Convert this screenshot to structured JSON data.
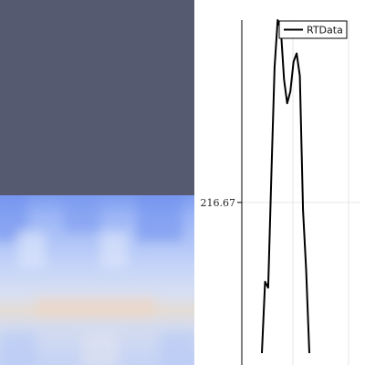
{
  "render_view": {
    "background_color": "#565a70",
    "slice_colormap": [
      "#8aa6f2",
      "#a9c0f7",
      "#c3d3f8",
      "#d8e0f3",
      "#e9dfd6",
      "#f0d8c6"
    ]
  },
  "chart_data": {
    "type": "line",
    "title": "",
    "xlabel": "",
    "ylabel": "",
    "ylim": [
      80,
      370
    ],
    "y_ticks": [
      {
        "value": 216.67,
        "label": "216.67"
      }
    ],
    "grid": true,
    "legend_position": "top-right",
    "series": [
      {
        "name": "RTData",
        "color": "#000000",
        "x": [
          0,
          1,
          2,
          3,
          4,
          5,
          6,
          7,
          8,
          9,
          10,
          11,
          12,
          13,
          14,
          15
        ],
        "y": [
          90,
          150,
          145,
          240,
          330,
          370,
          362,
          320,
          300,
          310,
          335,
          342,
          323,
          210,
          160,
          90
        ]
      }
    ]
  }
}
